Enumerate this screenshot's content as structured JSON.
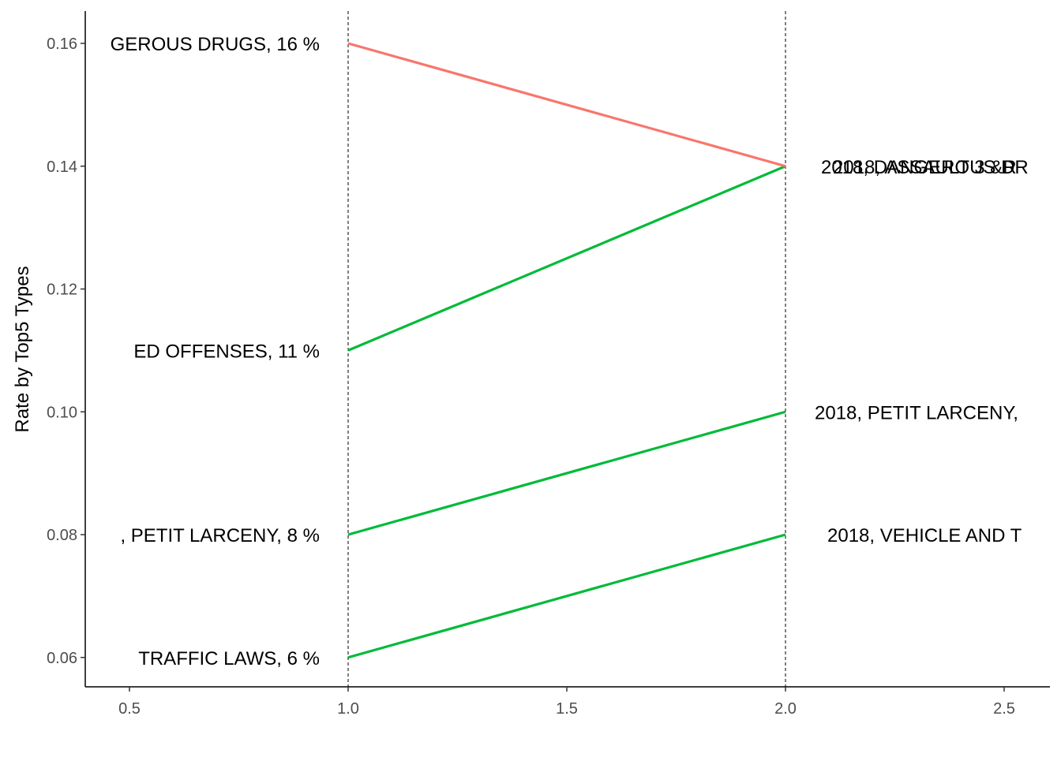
{
  "chart_data": {
    "type": "line",
    "title": "",
    "xlabel": "",
    "ylabel": "Rate by Top5 Types",
    "xlim": [
      0.4,
      2.6
    ],
    "ylim": [
      0.055,
      0.165
    ],
    "x_ticks": [
      0.5,
      1.0,
      1.5,
      2.0,
      2.5
    ],
    "x_tick_labels": [
      "0.5",
      "1.0",
      "1.5",
      "2.0",
      "2.5"
    ],
    "y_ticks": [
      0.06,
      0.08,
      0.1,
      0.12,
      0.14,
      0.16
    ],
    "y_tick_labels": [
      "0.06",
      "0.08",
      "0.10",
      "0.12",
      "0.14",
      "0.16"
    ],
    "grid": false,
    "vertical_reference_lines": [
      1.0,
      2.0
    ],
    "legend": "none",
    "colors": {
      "decrease": "#F8766D",
      "increase": "#00BA38"
    },
    "series": [
      {
        "x": [
          1,
          2
        ],
        "values": [
          0.16,
          0.14
        ],
        "direction": "decrease",
        "left_label": "GEROUS DRUGS, 16 %",
        "right_label": "2018, DANGEROUS DR"
      },
      {
        "x": [
          1,
          2
        ],
        "values": [
          0.11,
          0.14
        ],
        "direction": "increase",
        "left_label": "ED OFFENSES, 11 %",
        "right_label": "2018, ASSAULT 3 &R"
      },
      {
        "x": [
          1,
          2
        ],
        "values": [
          0.08,
          0.1
        ],
        "direction": "increase",
        "left_label": ", PETIT LARCENY, 8 %",
        "right_label": "2018, PETIT LARCENY, "
      },
      {
        "x": [
          1,
          2
        ],
        "values": [
          0.06,
          0.08
        ],
        "direction": "increase",
        "left_label": "TRAFFIC LAWS, 6 %",
        "right_label": "2018, VEHICLE AND T"
      }
    ]
  }
}
